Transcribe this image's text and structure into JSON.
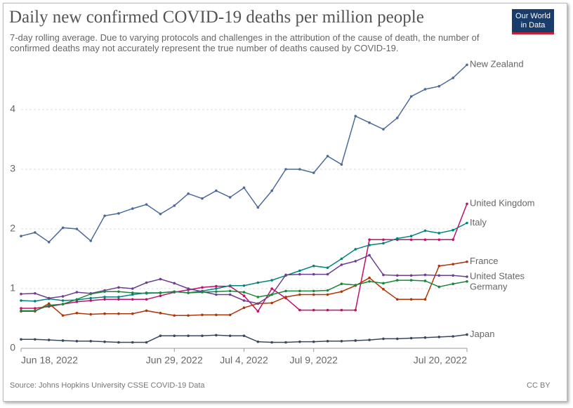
{
  "chart_data": {
    "type": "line",
    "title": "Daily new confirmed COVID-19 deaths per million people",
    "subtitle": "7-day rolling average. Due to varying protocols and challenges in the attribution of the cause of death, the number of confirmed deaths may not accurately represent the true number of deaths caused by COVID-19.",
    "logo": [
      "Our World",
      "in Data"
    ],
    "source": "Source: Johns Hopkins University CSSE COVID-19 Data",
    "license": "CC BY",
    "x": [
      "2022-06-18",
      "2022-06-19",
      "2022-06-20",
      "2022-06-21",
      "2022-06-22",
      "2022-06-23",
      "2022-06-24",
      "2022-06-25",
      "2022-06-26",
      "2022-06-27",
      "2022-06-28",
      "2022-06-29",
      "2022-06-30",
      "2022-07-01",
      "2022-07-02",
      "2022-07-03",
      "2022-07-04",
      "2022-07-05",
      "2022-07-06",
      "2022-07-07",
      "2022-07-08",
      "2022-07-09",
      "2022-07-10",
      "2022-07-11",
      "2022-07-12",
      "2022-07-13",
      "2022-07-14",
      "2022-07-15",
      "2022-07-16",
      "2022-07-17",
      "2022-07-18",
      "2022-07-19",
      "2022-07-20"
    ],
    "xlim": [
      "2022-06-18",
      "2022-07-20"
    ],
    "xticks": [
      {
        "value": "2022-06-18",
        "label": "Jun 18, 2022"
      },
      {
        "value": "2022-06-29",
        "label": "Jun 29, 2022"
      },
      {
        "value": "2022-07-04",
        "label": "Jul 4, 2022"
      },
      {
        "value": "2022-07-09",
        "label": "Jul 9, 2022"
      },
      {
        "value": "2022-07-20",
        "label": "Jul 20, 2022"
      }
    ],
    "ylim": [
      0,
      4.8
    ],
    "yticks": [
      0,
      1,
      2,
      3,
      4
    ],
    "grid": true,
    "series": [
      {
        "name": "New Zealand",
        "color": "#4c6a9c",
        "values": [
          1.88,
          1.94,
          1.78,
          2.02,
          2.0,
          1.8,
          2.22,
          2.26,
          2.34,
          2.41,
          2.25,
          2.39,
          2.59,
          2.51,
          2.64,
          2.53,
          2.69,
          2.36,
          2.64,
          3.0,
          3.0,
          2.94,
          3.22,
          3.08,
          3.89,
          3.78,
          3.67,
          3.86,
          4.22,
          4.34,
          4.39,
          4.53,
          4.75
        ]
      },
      {
        "name": "United Kingdom",
        "color": "#c0106c",
        "values": [
          0.67,
          0.67,
          0.7,
          0.74,
          0.78,
          0.8,
          0.82,
          0.82,
          0.82,
          0.82,
          0.88,
          0.94,
          0.98,
          1.02,
          1.04,
          1.04,
          0.88,
          0.62,
          1.0,
          0.84,
          0.64,
          0.64,
          0.64,
          0.64,
          0.64,
          1.82,
          1.82,
          1.82,
          1.82,
          1.82,
          1.82,
          1.82,
          2.42
        ]
      },
      {
        "name": "Italy",
        "color": "#00847e",
        "values": [
          0.8,
          0.79,
          0.83,
          0.8,
          0.81,
          0.84,
          0.86,
          0.86,
          0.9,
          0.93,
          0.93,
          0.95,
          0.93,
          0.96,
          1.0,
          1.05,
          1.05,
          1.1,
          1.14,
          1.22,
          1.3,
          1.38,
          1.35,
          1.5,
          1.66,
          1.73,
          1.76,
          1.84,
          1.88,
          1.97,
          1.93,
          1.98,
          2.1
        ]
      },
      {
        "name": "France",
        "color": "#b13507",
        "values": [
          0.62,
          0.62,
          0.75,
          0.55,
          0.59,
          0.57,
          0.58,
          0.58,
          0.58,
          0.63,
          0.59,
          0.55,
          0.55,
          0.56,
          0.56,
          0.56,
          0.68,
          0.75,
          0.76,
          0.86,
          0.9,
          0.9,
          0.9,
          0.95,
          1.05,
          1.18,
          0.99,
          0.82,
          0.82,
          0.82,
          1.38,
          1.41,
          1.45
        ]
      },
      {
        "name": "United States",
        "color": "#6d3e91",
        "values": [
          0.91,
          0.92,
          0.84,
          0.87,
          0.94,
          0.92,
          0.97,
          1.02,
          1.0,
          1.1,
          1.16,
          1.09,
          1.0,
          0.95,
          0.9,
          0.9,
          0.8,
          0.75,
          0.9,
          1.23,
          1.24,
          1.24,
          1.24,
          1.4,
          1.46,
          1.56,
          1.23,
          1.22,
          1.22,
          1.23,
          1.22,
          1.22,
          1.2
        ]
      },
      {
        "name": "Germany",
        "color": "#18873a",
        "values": [
          0.63,
          0.63,
          0.72,
          0.74,
          0.82,
          0.91,
          0.95,
          0.95,
          0.93,
          0.92,
          0.93,
          0.95,
          0.93,
          0.94,
          0.95,
          0.96,
          0.94,
          0.86,
          0.9,
          0.96,
          0.96,
          0.96,
          0.97,
          1.08,
          1.06,
          1.12,
          1.09,
          1.14,
          1.14,
          1.13,
          1.03,
          1.08,
          1.12
        ]
      },
      {
        "name": "Japan",
        "color": "#38495e",
        "values": [
          0.15,
          0.15,
          0.14,
          0.13,
          0.12,
          0.12,
          0.11,
          0.1,
          0.1,
          0.1,
          0.21,
          0.21,
          0.21,
          0.21,
          0.22,
          0.21,
          0.21,
          0.11,
          0.1,
          0.1,
          0.11,
          0.11,
          0.12,
          0.12,
          0.13,
          0.14,
          0.16,
          0.16,
          0.17,
          0.18,
          0.19,
          0.2,
          0.23
        ]
      }
    ]
  }
}
